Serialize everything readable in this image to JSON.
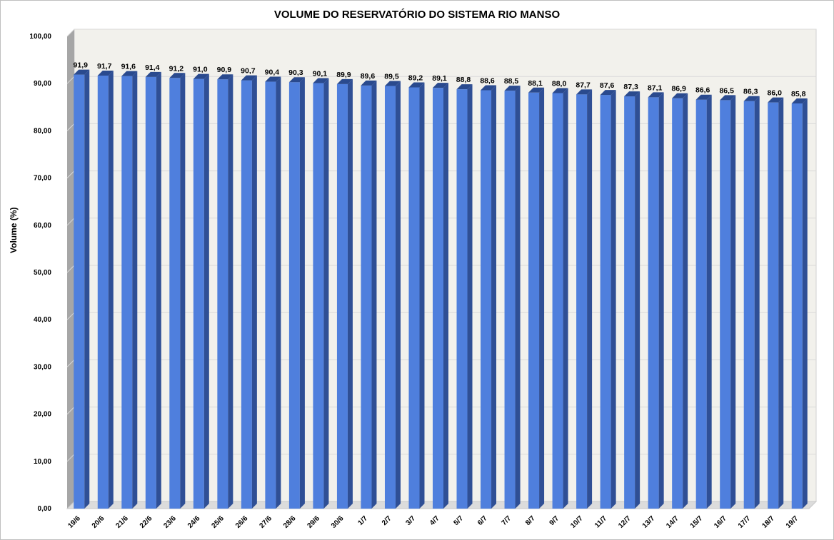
{
  "chart_data": {
    "type": "bar",
    "title": "VOLUME DO RESERVATÓRIO DO SISTEMA RIO MANSO",
    "xlabel": "",
    "ylabel": "Volume (%)",
    "ylim": [
      0,
      100
    ],
    "yticks": [
      "0,00",
      "10,00",
      "20,00",
      "30,00",
      "40,00",
      "50,00",
      "60,00",
      "70,00",
      "80,00",
      "90,00",
      "100,00"
    ],
    "grid": true,
    "legend": "none",
    "categories": [
      "19/6",
      "20/6",
      "21/6",
      "22/6",
      "23/6",
      "24/6",
      "25/6",
      "26/6",
      "27/6",
      "28/6",
      "29/6",
      "30/6",
      "1/7",
      "2/7",
      "3/7",
      "4/7",
      "5/7",
      "6/7",
      "7/7",
      "8/7",
      "9/7",
      "10/7",
      "11/7",
      "12/7",
      "13/7",
      "14/7",
      "15/7",
      "16/7",
      "17/7",
      "18/7",
      "19/7"
    ],
    "values": [
      91.9,
      91.7,
      91.6,
      91.4,
      91.2,
      91.0,
      90.9,
      90.7,
      90.4,
      90.3,
      90.1,
      89.9,
      89.6,
      89.5,
      89.2,
      89.1,
      88.8,
      88.6,
      88.5,
      88.1,
      88.0,
      87.7,
      87.6,
      87.3,
      87.1,
      86.9,
      86.6,
      86.5,
      86.3,
      86.0,
      85.8
    ],
    "value_labels": [
      "91,9",
      "91,7",
      "91,6",
      "91,4",
      "91,2",
      "91,0",
      "90,9",
      "90,7",
      "90,4",
      "90,3",
      "90,1",
      "89,9",
      "89,6",
      "89,5",
      "89,2",
      "89,1",
      "88,8",
      "88,6",
      "88,5",
      "88,1",
      "88,0",
      "87,7",
      "87,6",
      "87,3",
      "87,1",
      "86,9",
      "86,6",
      "86,5",
      "86,3",
      "86,0",
      "85,8"
    ],
    "colors": {
      "bar_front": "#4f7fdd",
      "bar_side": "#2f4f95",
      "bar_top": "#2a4a8e",
      "wall": "#f2f1ec",
      "grid": "#d9d9d9"
    }
  }
}
